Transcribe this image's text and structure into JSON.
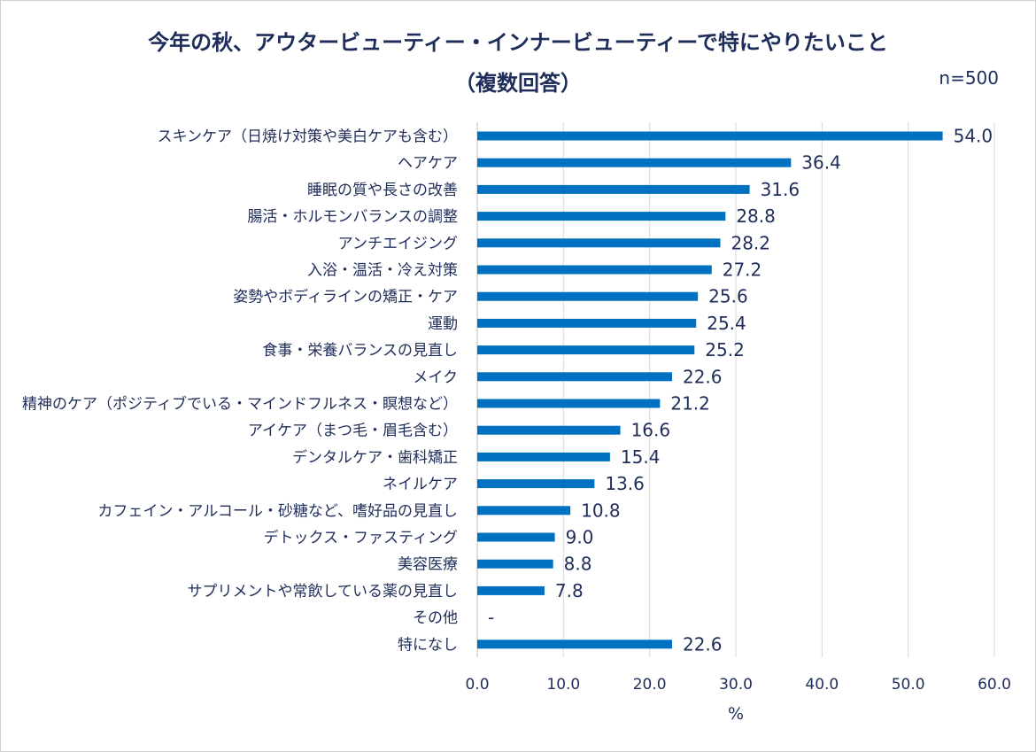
{
  "chart_data": {
    "type": "bar",
    "orientation": "horizontal",
    "title": "今年の秋、アウタービューティー・インナービューティーで特にやりたいこと",
    "subtitle": "（複数回答）",
    "sample_size": "n=500",
    "xlabel": "%",
    "xlim": [
      0,
      60
    ],
    "xticks": [
      "0.0",
      "10.0",
      "20.0",
      "30.0",
      "40.0",
      "50.0",
      "60.0"
    ],
    "grid": true,
    "bar_color": "#0070c0",
    "categories": [
      "スキンケア（日焼け対策や美白ケアも含む）",
      "ヘアケア",
      "睡眠の質や長さの改善",
      "腸活・ホルモンバランスの調整",
      "アンチエイジング",
      "入浴・温活・冷え対策",
      "姿勢やボディラインの矯正・ケア",
      "運動",
      "食事・栄養バランスの見直し",
      "メイク",
      "精神のケア（ポジティブでいる・マインドフルネス・瞑想など）",
      "アイケア（まつ毛・眉毛含む）",
      "デンタルケア・歯科矯正",
      "ネイルケア",
      "カフェイン・アルコール・砂糖など、嗜好品の見直し",
      "デトックス・ファスティング",
      "美容医療",
      "サプリメントや常飲している薬の見直し",
      "その他",
      "特になし"
    ],
    "values": [
      54.0,
      36.4,
      31.6,
      28.8,
      28.2,
      27.2,
      25.6,
      25.4,
      25.2,
      22.6,
      21.2,
      16.6,
      15.4,
      13.6,
      10.8,
      9.0,
      8.8,
      7.8,
      null,
      22.6
    ],
    "labels": [
      "54.0",
      "36.4",
      "31.6",
      "28.8",
      "28.2",
      "27.2",
      "25.6",
      "25.4",
      "25.2",
      "22.6",
      "21.2",
      "16.6",
      "15.4",
      "13.6",
      "10.8",
      "9.0",
      "8.8",
      "7.8",
      "-",
      "22.6"
    ]
  }
}
